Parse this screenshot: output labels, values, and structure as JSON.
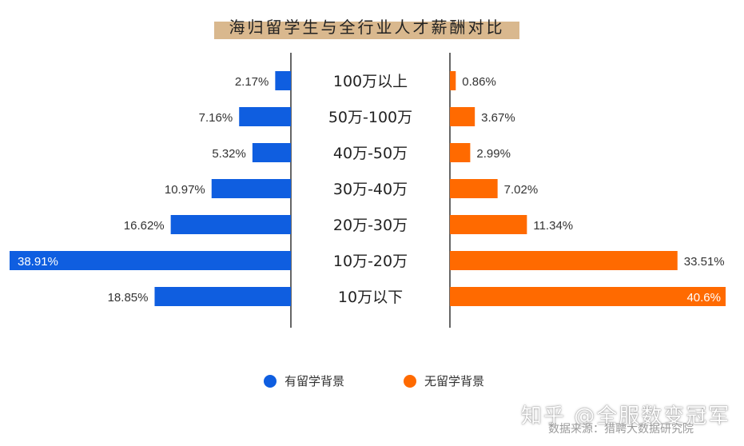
{
  "chart_data": {
    "type": "bar",
    "title": "海归留学生与全行业人才薪酬对比",
    "categories": [
      "100万以上",
      "50万-100万",
      "40万-50万",
      "30万-40万",
      "20万-30万",
      "10万-20万",
      "10万以下"
    ],
    "series": [
      {
        "name": "有留学背景",
        "values": [
          2.17,
          7.16,
          5.32,
          10.97,
          16.62,
          38.91,
          18.85
        ],
        "labels": [
          "2.17%",
          "7.16%",
          "5.32%",
          "10.97%",
          "16.62%",
          "38.91%",
          "18.85%"
        ],
        "color": "#0f5ee0"
      },
      {
        "name": "无留学背景",
        "values": [
          0.86,
          3.67,
          2.99,
          7.02,
          11.34,
          33.51,
          40.6
        ],
        "labels": [
          "0.86%",
          "3.67%",
          "2.99%",
          "7.02%",
          "11.34%",
          "33.51%",
          "40.6%"
        ],
        "color": "#ff6a00"
      }
    ],
    "unit": "%",
    "legend_position": "bottom"
  },
  "legend": [
    {
      "label": "有留学背景",
      "color": "#0f5ee0"
    },
    {
      "label": "无留学背景",
      "color": "#ff6a00"
    }
  ],
  "watermark": "知乎 @全服数变冠军",
  "source": "数据来源：猎聘大数据研究院"
}
